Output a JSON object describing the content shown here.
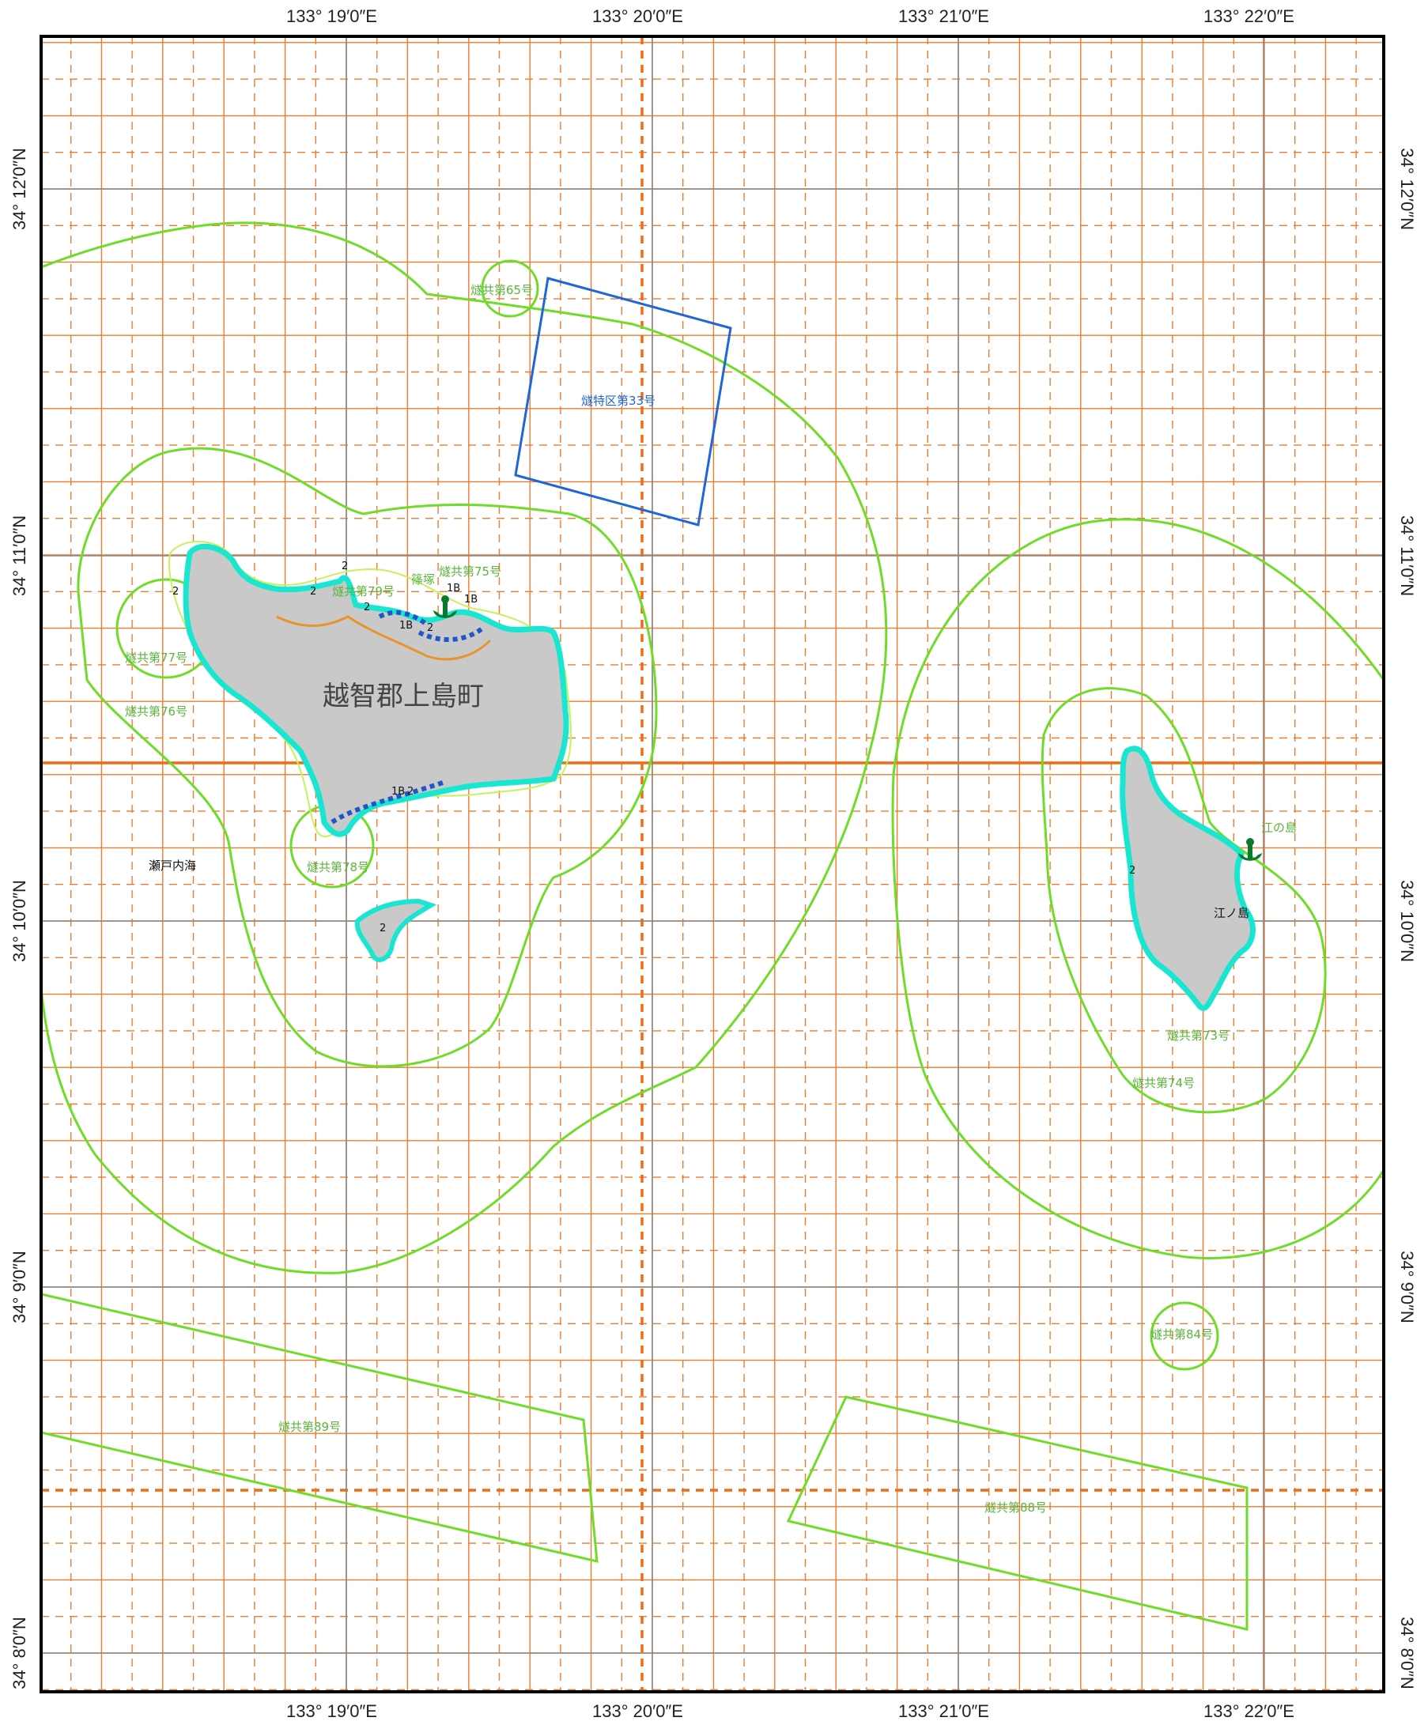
{
  "map": {
    "lon_labels": [
      "133° 19′0″E",
      "133° 20′0″E",
      "133° 21′0″E",
      "133° 22′0″E"
    ],
    "lat_labels": [
      "34° 12′0″N",
      "34° 11′0″N",
      "34° 10′0″N",
      "34° 9′0″N",
      "34° 8′0″N"
    ],
    "town_label": "越智郡上島町",
    "sea_label": "瀬戸内海",
    "island_labels": {
      "enoshima": "江ノ島",
      "small_island_note": "江の島"
    },
    "place_label": "篠塚",
    "depth_marks": [
      "2",
      "2",
      "2",
      "2",
      "1B",
      "1B",
      "1B",
      "2",
      "1B",
      "2",
      "2",
      "2"
    ],
    "zones": {
      "z33": "燧特区第33号",
      "z65": "燧共第65号",
      "z75": "燧共第75号",
      "z79": "燧共第79号",
      "z77": "燧共第77号",
      "z76": "燧共第76号",
      "z78": "燧共第78号",
      "z73": "燧共第73号",
      "z74": "燧共第74号",
      "z84": "燧共第84号",
      "z89": "燧共第89号",
      "z88": "燧共第88号"
    },
    "colors": {
      "grid": "#f07a2e",
      "graticule": "#888888",
      "zone_green": "#6fdc2a",
      "zone_blue": "#1f66d8",
      "coast_cyan": "#18e6d0",
      "land": "#c9c9c9",
      "dash_blue": "#1f57c8"
    }
  }
}
